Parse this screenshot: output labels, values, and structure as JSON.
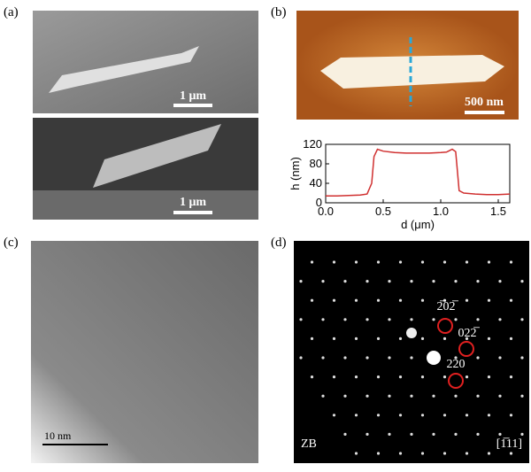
{
  "panels": [
    {
      "label": "(a)",
      "scale_bars": [
        "1 μm",
        "1 μm"
      ]
    },
    {
      "label": "(b)",
      "scale_bars": [
        "500 nm"
      ]
    },
    {
      "label": "(c)",
      "scale_bars": [
        "10 nm"
      ]
    },
    {
      "label": "(d)"
    }
  ],
  "chart_data": {
    "type": "line",
    "x_label": "d (μm)",
    "y_label": "h (nm)",
    "x": [
      0,
      0.1,
      0.2,
      0.3,
      0.36,
      0.4,
      0.42,
      0.45,
      0.5,
      0.6,
      0.7,
      0.8,
      0.9,
      1.0,
      1.05,
      1.1,
      1.13,
      1.16,
      1.2,
      1.3,
      1.4,
      1.5,
      1.6
    ],
    "series": [
      {
        "color": "#d03030",
        "values": [
          14,
          14,
          15,
          16,
          18,
          40,
          95,
          110,
          106,
          103,
          102,
          102,
          102,
          103,
          104,
          110,
          105,
          25,
          20,
          18,
          17,
          17,
          18
        ]
      }
    ],
    "xlim": [
      0,
      1.6
    ],
    "ylim": [
      0,
      120
    ],
    "xticks": [
      {
        "value": 0,
        "label": "0.0"
      },
      0.5,
      {
        "value": 1,
        "label": "1.0"
      },
      1.5
    ],
    "yticks": [
      0,
      40,
      80,
      120
    ]
  },
  "diffraction": {
    "spots": [
      "2̅02̅",
      "022̅",
      "220"
    ],
    "phase": "ZB",
    "zone_axis": "[1̅11]"
  }
}
